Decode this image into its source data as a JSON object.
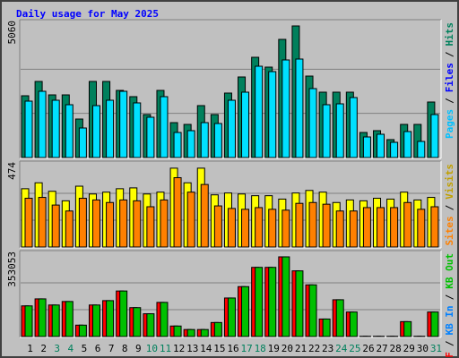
{
  "chart_data": [
    {
      "type": "bar",
      "title": "Daily usage for May 2025",
      "title_color": "#0000ff",
      "ylim": [
        0,
        5060
      ],
      "yticks": [
        5060
      ],
      "grid": true,
      "legend": [
        {
          "text": "Pages",
          "color": "#00c0ff"
        },
        {
          "text": "Files",
          "color": "#0000ff"
        },
        {
          "text": "Hits",
          "color": "#00805c"
        }
      ],
      "separator": "/",
      "series": [
        {
          "name": "Hits",
          "color": "#00805c",
          "values": [
            2359,
            2906,
            2393,
            2393,
            1470,
            2906,
            2906,
            2564,
            2325,
            1641,
            2564,
            1333,
            1265,
            1983,
            1641,
            2462,
            3077,
            3829,
            3453,
            4513,
            5026,
            3111,
            2496,
            2496,
            2496,
            957,
            1026,
            684,
            1265,
            1265,
            2120
          ]
        },
        {
          "name": "Pages",
          "color": "#00e0ff",
          "values": [
            2154,
            2530,
            2188,
            2017,
            1128,
            1983,
            2188,
            2530,
            2086,
            1539,
            2325,
            957,
            1026,
            1333,
            1299,
            2188,
            2496,
            3487,
            3282,
            3727,
            3761,
            2633,
            2017,
            2051,
            2291,
            786,
            889,
            581,
            992,
            615,
            1641
          ]
        }
      ]
    },
    {
      "type": "bar",
      "ylim": [
        0,
        474
      ],
      "yticks": [
        474
      ],
      "grid": true,
      "legend": [
        {
          "text": "Sites",
          "color": "#ff8000"
        },
        {
          "text": "Visits",
          "color": "#c0a000"
        }
      ],
      "separator": "/",
      "series": [
        {
          "name": "Visits",
          "color": "#ffff00",
          "values": [
            343,
            378,
            328,
            272,
            358,
            312,
            323,
            343,
            348,
            312,
            323,
            464,
            378,
            464,
            307,
            318,
            312,
            302,
            302,
            282,
            318,
            333,
            323,
            262,
            277,
            272,
            287,
            282,
            323,
            277,
            292
          ]
        },
        {
          "name": "Sites",
          "color": "#ff8000",
          "values": [
            287,
            292,
            247,
            212,
            287,
            277,
            262,
            277,
            272,
            237,
            277,
            408,
            323,
            368,
            242,
            227,
            222,
            232,
            222,
            217,
            257,
            262,
            252,
            212,
            212,
            232,
            232,
            232,
            262,
            222,
            237
          ]
        }
      ]
    },
    {
      "type": "bar",
      "ylim": [
        0,
        353053
      ],
      "yticks": [
        353053
      ],
      "grid": true,
      "legend": [
        {
          "text": "KB F",
          "color": "#ff0000"
        },
        {
          "text": "KB In",
          "color": "#0080ff"
        },
        {
          "text": "KB Out",
          "color": "#00c000"
        }
      ],
      "separator": "/",
      "categories": [
        "1",
        "2",
        "3",
        "4",
        "5",
        "6",
        "7",
        "8",
        "9",
        "10",
        "11",
        "12",
        "13",
        "14",
        "15",
        "16",
        "17",
        "18",
        "19",
        "20",
        "21",
        "22",
        "23",
        "24",
        "25",
        "26",
        "27",
        "28",
        "29",
        "30",
        "31"
      ],
      "category_colors": [
        "#000000",
        "#000000",
        "#00805c",
        "#00805c",
        "#000000",
        "#000000",
        "#000000",
        "#000000",
        "#000000",
        "#00805c",
        "#00805c",
        "#000000",
        "#000000",
        "#000000",
        "#000000",
        "#000000",
        "#00805c",
        "#00805c",
        "#000000",
        "#000000",
        "#000000",
        "#000000",
        "#000000",
        "#00805c",
        "#00805c",
        "#000000",
        "#000000",
        "#000000",
        "#000000",
        "#000000",
        "#00805c"
      ],
      "series": [
        {
          "name": "KB F",
          "color": "#ff0000",
          "values": [
            134313,
            165013,
            138150,
            153500,
            49888,
            138150,
            157338,
            199550,
            126638,
            99775,
            149663,
            46050,
            30700,
            30700,
            61400,
            168850,
            218738,
            303163,
            303163,
            349213,
            287813,
            226413,
            76750,
            161175,
            107450,
            1000,
            1000,
            1000,
            65238,
            1000,
            107450
          ]
        },
        {
          "name": "KB Out",
          "color": "#00c000",
          "values": [
            134313,
            165013,
            138150,
            153500,
            49888,
            138150,
            157338,
            199550,
            126638,
            99775,
            149663,
            46050,
            30700,
            30700,
            61400,
            168850,
            218738,
            303163,
            303163,
            349213,
            287813,
            226413,
            76750,
            161175,
            107450,
            1000,
            1000,
            1000,
            65238,
            1000,
            107450
          ]
        }
      ]
    }
  ]
}
